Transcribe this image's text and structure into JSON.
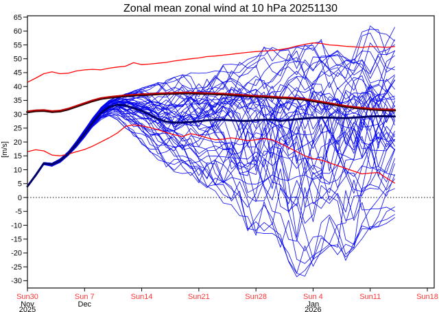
{
  "title": "Zonal mean zonal wind at 10 hPa 20251130",
  "chart_data": {
    "type": "line",
    "title": "Zonal mean zonal wind at 10 hPa 20251130",
    "xlabel": "",
    "ylabel": "[m/s]",
    "ylim": [
      -32.5,
      65.5
    ],
    "x_axis_days_total": 50,
    "forecast_days": 46,
    "grid": false,
    "zero_line": true,
    "legend": "none",
    "y_ticks": [
      65,
      60,
      55,
      50,
      45,
      40,
      35,
      30,
      25,
      20,
      15,
      10,
      5,
      0,
      -5,
      -10,
      -15,
      -20,
      -25,
      -30
    ],
    "x_ticks": [
      {
        "day": 0,
        "label": "Sun30",
        "month": "Nov",
        "year": "2025"
      },
      {
        "day": 7,
        "label": "Sun 7",
        "month": "Dec",
        "year": ""
      },
      {
        "day": 14,
        "label": "Sun14",
        "month": "",
        "year": ""
      },
      {
        "day": 21,
        "label": "Sun21",
        "month": "",
        "year": ""
      },
      {
        "day": 28,
        "label": "Sun28",
        "month": "",
        "year": ""
      },
      {
        "day": 35,
        "label": "Sun 4",
        "month": "Jan",
        "year": "2026"
      },
      {
        "day": 42,
        "label": "Sun11",
        "month": "",
        "year": ""
      },
      {
        "day": 49,
        "label": "Sun18",
        "month": "",
        "year": ""
      }
    ],
    "series": [
      {
        "name": "climatology-max",
        "color": "#ff0000",
        "width": 1.3,
        "values": [
          41.5,
          43.0,
          44.6,
          45.3,
          44.6,
          44.8,
          45.6,
          46.0,
          46.2,
          46.0,
          46.6,
          47.0,
          47.3,
          48.6,
          47.9,
          48.1,
          48.4,
          48.7,
          49.2,
          49.6,
          50.0,
          50.3,
          50.8,
          51.0,
          51.3,
          51.6,
          52.0,
          52.3,
          52.6,
          52.8,
          53.0,
          53.3,
          53.8,
          54.6,
          55.2,
          55.7,
          55.5,
          55.0,
          54.8,
          54.5,
          54.3,
          54.1,
          54.4,
          54.3,
          54.1,
          54.4
        ]
      },
      {
        "name": "climatology-min",
        "color": "#ff0000",
        "width": 1.3,
        "values": [
          16.5,
          17.2,
          16.8,
          15.3,
          15.0,
          15.6,
          16.5,
          17.3,
          18.5,
          20.0,
          21.5,
          23.2,
          25.6,
          26.2,
          25.8,
          25.2,
          24.4,
          23.4,
          22.6,
          22.0,
          23.0,
          22.4,
          21.5,
          20.8,
          21.0,
          21.5,
          21.0,
          20.5,
          20.8,
          21.2,
          20.8,
          19.5,
          18.0,
          16.5,
          15.0,
          14.0,
          13.5,
          12.5,
          11.5,
          10.5,
          9.5,
          8.5,
          8.8,
          9.0,
          7.0,
          5.2
        ]
      },
      {
        "name": "climatology-mean",
        "color": "#c00000",
        "width": 2.0,
        "outline": "#2a0000",
        "values": [
          31.0,
          31.4,
          31.5,
          31.1,
          31.3,
          32.0,
          33.0,
          34.0,
          35.0,
          35.8,
          36.2,
          36.5,
          36.8,
          37.0,
          37.2,
          37.3,
          37.5,
          37.6,
          37.7,
          37.8,
          37.8,
          37.7,
          37.6,
          37.5,
          37.4,
          37.2,
          37.0,
          36.8,
          36.6,
          36.5,
          36.3,
          36.1,
          36.0,
          35.8,
          35.5,
          35.0,
          34.5,
          34.0,
          33.5,
          33.0,
          32.6,
          32.3,
          32.0,
          31.8,
          31.7,
          31.6
        ]
      },
      {
        "name": "ensemble-mean",
        "color": "#000066",
        "width": 3.0,
        "values": [
          4.0,
          8.0,
          12.3,
          11.9,
          13.3,
          15.8,
          19.2,
          23.0,
          27.0,
          30.5,
          32.6,
          33.4,
          33.2,
          32.2,
          31.2,
          29.8,
          28.3,
          27.3,
          27.0,
          27.0,
          27.2,
          27.5,
          27.8,
          28.0,
          28.0,
          27.8,
          27.6,
          27.6,
          27.8,
          28.0,
          28.0,
          27.6,
          27.9,
          28.2,
          28.5,
          28.7,
          28.8,
          28.8,
          28.7,
          28.6,
          28.8,
          29.0,
          29.2,
          29.3,
          29.3,
          29.2
        ]
      }
    ],
    "ensemble": {
      "count": 51,
      "color": "#0000ee",
      "width": 0.9,
      "seed": 20251130,
      "start_value": 4.0,
      "envelope_min": [
        4.0,
        7.5,
        11.8,
        11.2,
        12.5,
        14.8,
        18.0,
        21.5,
        25.2,
        28.0,
        29.0,
        28.0,
        25.0,
        22.0,
        19.0,
        16.0,
        13.5,
        11.0,
        9.0,
        8.0,
        7.0,
        5.0,
        3.0,
        1.0,
        -2.0,
        -5.0,
        -8.0,
        -12.0,
        -14.0,
        -14.0,
        -15.0,
        -18.0,
        -24.0,
        -29.0,
        -29.0,
        -25.0,
        -21.0,
        -18.0,
        -21.0,
        -23.0,
        -19.0,
        -15.0,
        -12.0,
        -11.0,
        -10.0,
        -9.5
      ],
      "envelope_max": [
        4.0,
        8.5,
        12.8,
        12.6,
        14.1,
        16.8,
        20.4,
        24.5,
        28.8,
        32.5,
        35.0,
        36.5,
        37.5,
        38.5,
        39.5,
        40.5,
        41.5,
        42.5,
        43.5,
        44.5,
        45.5,
        46.0,
        46.5,
        47.0,
        48.0,
        49.0,
        50.0,
        51.0,
        53.0,
        56.0,
        55.0,
        53.5,
        54.0,
        54.5,
        55.0,
        56.0,
        57.0,
        56.0,
        57.0,
        58.5,
        60.0,
        62.0,
        63.0,
        61.0,
        59.0,
        63.0
      ]
    },
    "colors": {
      "x_tick_label": "#ff3333",
      "month_label": "#000000",
      "axis_frame": "#2b2b2b",
      "zero_line": "#000000",
      "text": "#000000"
    }
  }
}
